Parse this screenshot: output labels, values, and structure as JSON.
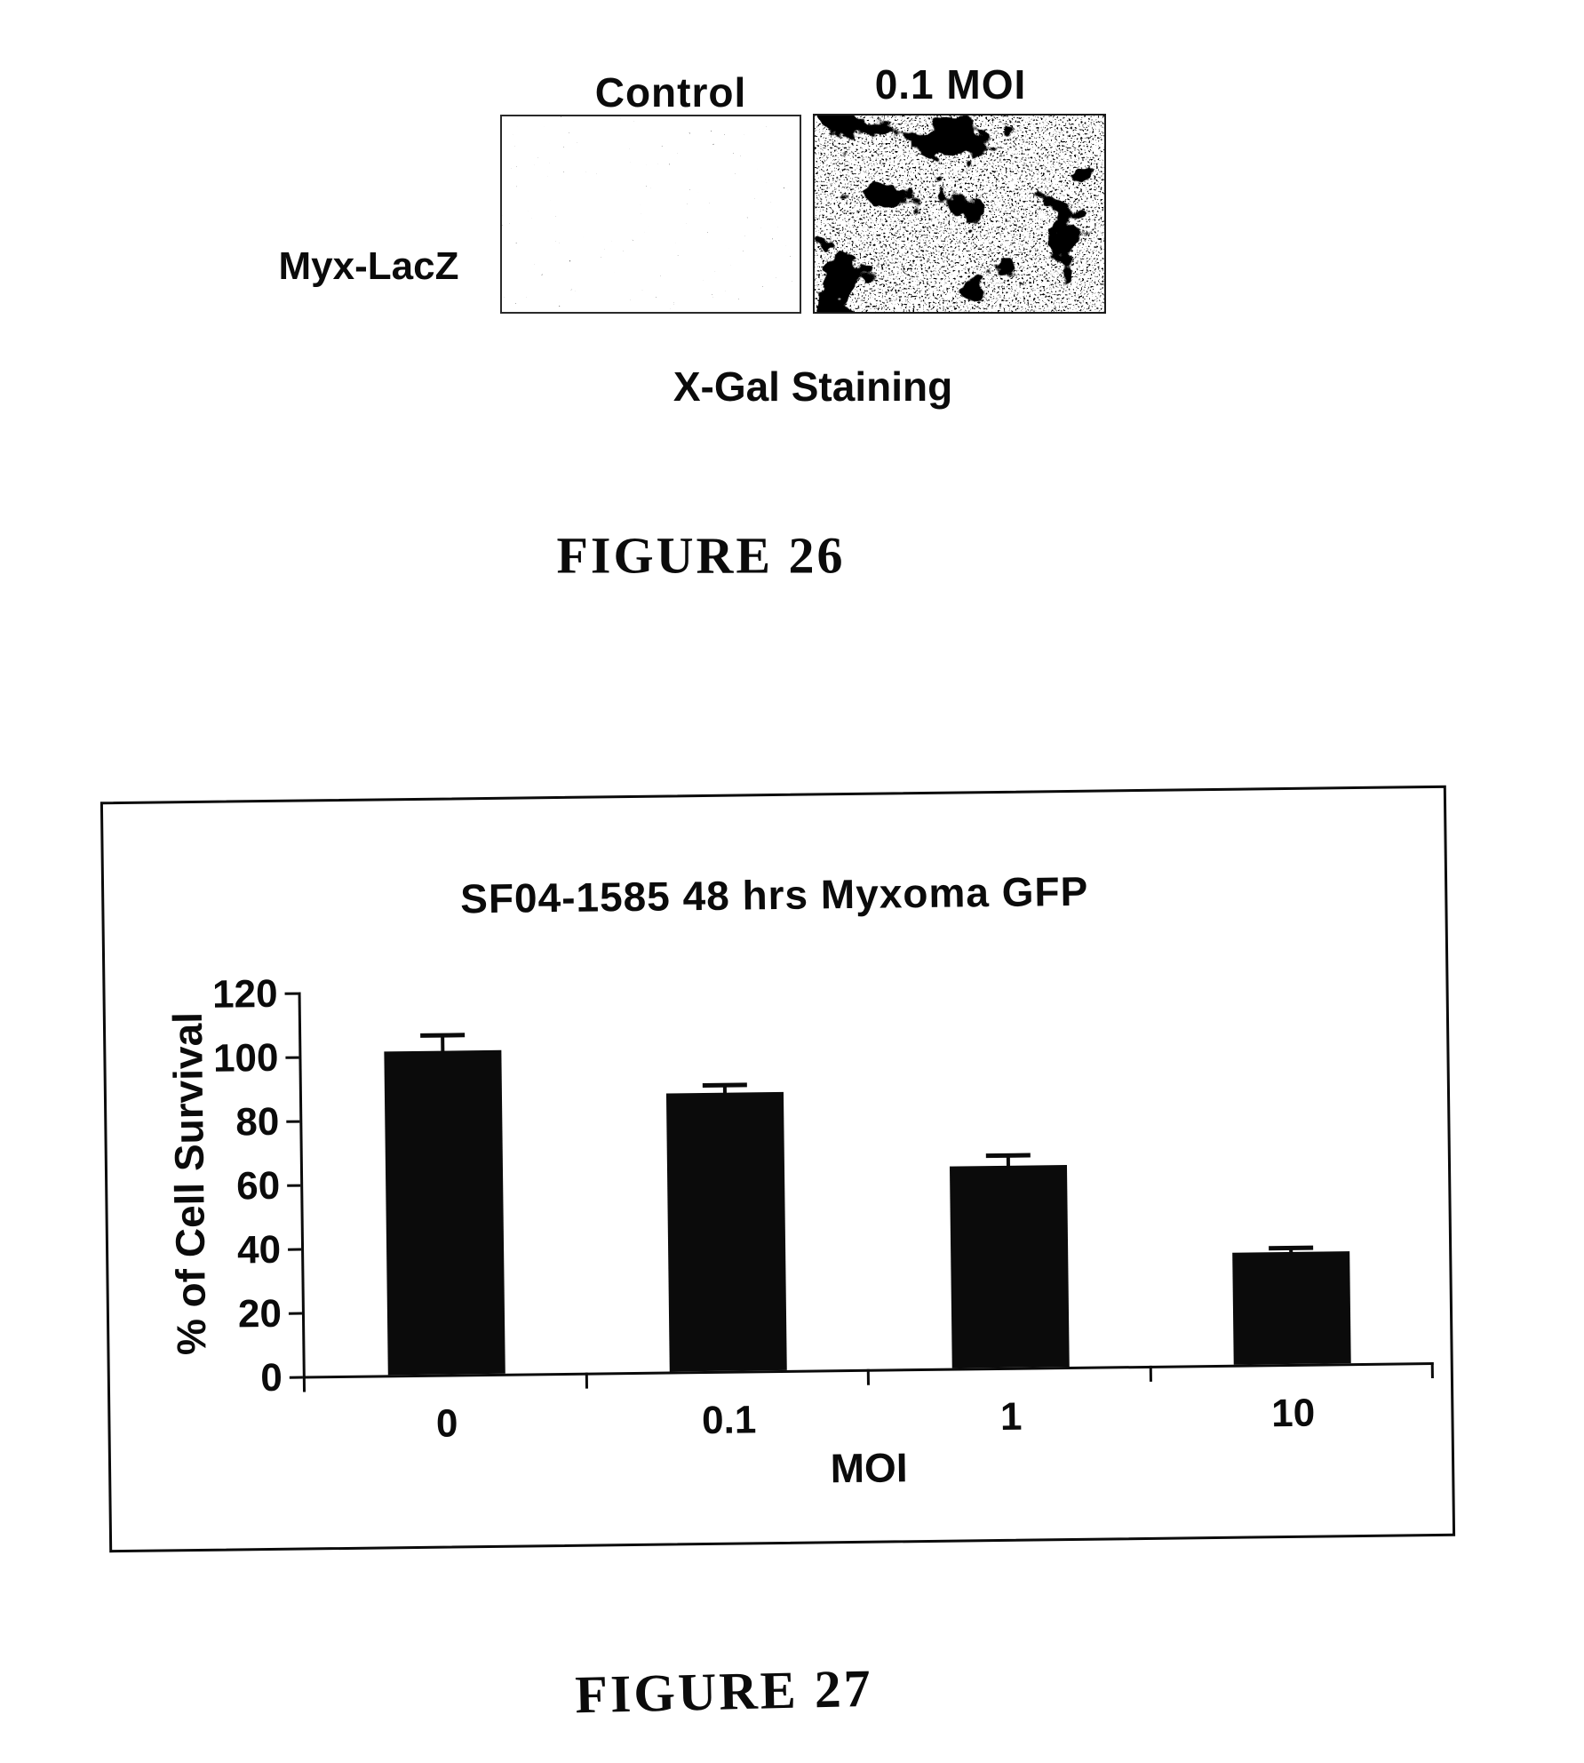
{
  "page": {
    "background": "#ffffff",
    "ink": "#0b0b0b"
  },
  "figure26": {
    "panel_row_label": "Myx-LacZ",
    "panels": [
      {
        "label": "Control",
        "stain_density": "sparse"
      },
      {
        "label": "0.1 MOI",
        "stain_density": "dense-with-dark-foci"
      }
    ],
    "caption": "X-Gal Staining",
    "figure_label": "FIGURE 26"
  },
  "figure27": {
    "figure_label": "FIGURE 27"
  },
  "chart_data": {
    "type": "bar",
    "title": "SF04-1585 48 hrs Myxoma GFP",
    "categories": [
      "0",
      "0.1",
      "1",
      "10"
    ],
    "values": [
      101,
      87,
      63,
      35
    ],
    "error_plus": [
      5,
      2.5,
      3.5,
      1.5
    ],
    "xlabel": "MOI",
    "ylabel": "% of Cell Survival",
    "ylim": [
      0,
      120
    ],
    "yticks": [
      0,
      20,
      40,
      60,
      80,
      100,
      120
    ],
    "bar_color": "#0b0b0b",
    "grid": false,
    "legend": null,
    "error_bars": "upper-only"
  }
}
